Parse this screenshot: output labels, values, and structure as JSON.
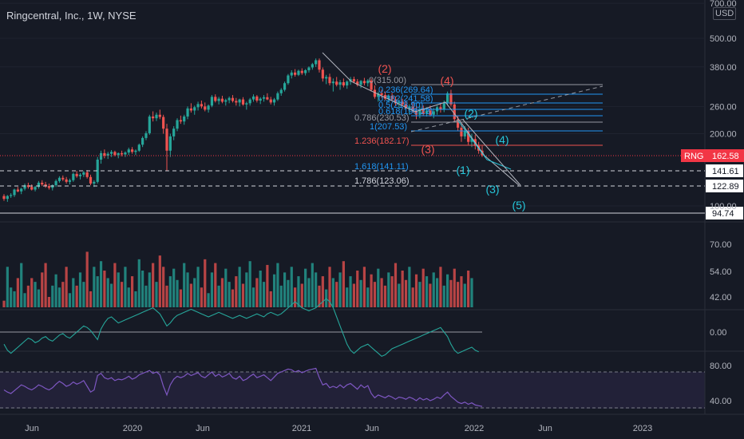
{
  "header": {
    "title": "Ringcentral, Inc., 1W, NYSE",
    "currency": "USD"
  },
  "colors": {
    "up": "#26a69a",
    "down": "#ef5350",
    "rsi": "#7e57c2",
    "osc_up": "#26a69a",
    "osc_down": "#c2185b",
    "fib_blue": "#2196f3",
    "wave_red": "#ef5350",
    "wave_teal": "#26c6da",
    "current_price": "#f23645"
  },
  "chart_data": {
    "type": "candlestick",
    "title": "Ringcentral, Inc., 1W, NYSE",
    "scale": "log",
    "price_axis_ticks": [
      "700.00",
      "500.00",
      "380.00",
      "260.00",
      "200.00",
      "100.00"
    ],
    "volume_axis_ticks": [
      "70.00",
      "54.00",
      "42.00"
    ],
    "oscillator_axis_ticks": [
      "0.00"
    ],
    "rsi_axis_ticks": [
      "80.00",
      "40.00"
    ],
    "time_ticks": [
      "Jun",
      "2020",
      "Jun",
      "2021",
      "Jun",
      "2022",
      "Jun",
      "2023"
    ],
    "current_price": {
      "symbol": "RNG",
      "value": "162.58"
    },
    "price_lines": [
      "141.61",
      "122.89",
      "94.74"
    ],
    "fib_levels": [
      {
        "label": "0(315.00)",
        "color": "#9598a1"
      },
      {
        "label": "0.236(269.64)",
        "color": "#2196f3"
      },
      {
        "label": "0.382(241.58)",
        "color": "#2196f3"
      },
      {
        "label": "0.5(218.90)",
        "color": "#2196f3"
      },
      {
        "label": "0.618(196.23)",
        "color": "#2196f3"
      },
      {
        "label": "0.786(230.53)",
        "color": "#9598a1"
      },
      {
        "label": "1(207.53)",
        "color": "#2196f3"
      },
      {
        "label": "1.236(182.17)",
        "color": "#ef5350"
      },
      {
        "label": "1.618(141.11)",
        "color": "#2196f3"
      },
      {
        "label": "1.786(123.06)",
        "color": "#d1d4dc"
      }
    ],
    "wave_labels": [
      {
        "label": "(2)",
        "color": "#ef5350"
      },
      {
        "label": "(4)",
        "color": "#ef5350"
      },
      {
        "label": "(3)",
        "color": "#ef5350"
      },
      {
        "label": "(2)",
        "color": "#26c6da"
      },
      {
        "label": "(4)",
        "color": "#26c6da"
      },
      {
        "label": "(1)",
        "color": "#26c6da"
      },
      {
        "label": "(3)",
        "color": "#26c6da"
      },
      {
        "label": "(5)",
        "color": "#26c6da"
      }
    ],
    "candles": [
      [
        110,
        112,
        105,
        107
      ],
      [
        107,
        111,
        104,
        110
      ],
      [
        110,
        113,
        108,
        111
      ],
      [
        111,
        118,
        109,
        117
      ],
      [
        117,
        120,
        114,
        115
      ],
      [
        115,
        119,
        112,
        118
      ],
      [
        118,
        124,
        116,
        122
      ],
      [
        122,
        125,
        118,
        120
      ],
      [
        120,
        123,
        116,
        117
      ],
      [
        117,
        121,
        115,
        120
      ],
      [
        120,
        127,
        118,
        125
      ],
      [
        125,
        128,
        121,
        123
      ],
      [
        123,
        126,
        119,
        121
      ],
      [
        121,
        124,
        117,
        119
      ],
      [
        119,
        123,
        116,
        122
      ],
      [
        122,
        129,
        120,
        127
      ],
      [
        127,
        133,
        125,
        131
      ],
      [
        131,
        134,
        127,
        129
      ],
      [
        129,
        132,
        124,
        126
      ],
      [
        126,
        130,
        123,
        128
      ],
      [
        128,
        138,
        126,
        136
      ],
      [
        136,
        140,
        131,
        133
      ],
      [
        133,
        137,
        129,
        135
      ],
      [
        135,
        140,
        132,
        138
      ],
      [
        138,
        141,
        130,
        132
      ],
      [
        132,
        135,
        122,
        124
      ],
      [
        124,
        128,
        120,
        126
      ],
      [
        126,
        160,
        124,
        156
      ],
      [
        156,
        170,
        150,
        166
      ],
      [
        166,
        172,
        158,
        162
      ],
      [
        162,
        168,
        157,
        165
      ],
      [
        165,
        171,
        160,
        168
      ],
      [
        168,
        170,
        161,
        163
      ],
      [
        163,
        167,
        158,
        166
      ],
      [
        166,
        170,
        161,
        164
      ],
      [
        164,
        169,
        160,
        167
      ],
      [
        167,
        175,
        163,
        172
      ],
      [
        172,
        176,
        165,
        168
      ],
      [
        168,
        172,
        163,
        170
      ],
      [
        170,
        182,
        168,
        180
      ],
      [
        180,
        195,
        176,
        192
      ],
      [
        192,
        205,
        188,
        201
      ],
      [
        201,
        240,
        198,
        236
      ],
      [
        236,
        248,
        225,
        232
      ],
      [
        232,
        245,
        226,
        240
      ],
      [
        240,
        252,
        230,
        235
      ],
      [
        235,
        240,
        200,
        210
      ],
      [
        210,
        220,
        140,
        170
      ],
      [
        170,
        200,
        160,
        195
      ],
      [
        195,
        215,
        188,
        210
      ],
      [
        210,
        232,
        205,
        228
      ],
      [
        228,
        238,
        220,
        225
      ],
      [
        225,
        240,
        218,
        236
      ],
      [
        236,
        260,
        230,
        255
      ],
      [
        255,
        268,
        245,
        250
      ],
      [
        250,
        262,
        240,
        258
      ],
      [
        258,
        272,
        250,
        266
      ],
      [
        266,
        275,
        255,
        260
      ],
      [
        260,
        270,
        248,
        252
      ],
      [
        252,
        265,
        245,
        262
      ],
      [
        262,
        290,
        258,
        285
      ],
      [
        285,
        292,
        270,
        274
      ],
      [
        274,
        285,
        265,
        280
      ],
      [
        280,
        288,
        268,
        272
      ],
      [
        272,
        280,
        262,
        276
      ],
      [
        276,
        286,
        268,
        282
      ],
      [
        282,
        290,
        270,
        274
      ],
      [
        274,
        282,
        262,
        270
      ],
      [
        270,
        280,
        260,
        278
      ],
      [
        278,
        284,
        262,
        265
      ],
      [
        265,
        272,
        252,
        268
      ],
      [
        268,
        282,
        262,
        278
      ],
      [
        278,
        292,
        272,
        286
      ],
      [
        286,
        290,
        270,
        275
      ],
      [
        275,
        284,
        266,
        280
      ],
      [
        280,
        290,
        272,
        284
      ],
      [
        284,
        295,
        276,
        278
      ],
      [
        278,
        285,
        265,
        270
      ],
      [
        270,
        282,
        262,
        278
      ],
      [
        278,
        300,
        274,
        295
      ],
      [
        295,
        310,
        288,
        305
      ],
      [
        305,
        330,
        300,
        325
      ],
      [
        325,
        355,
        320,
        350
      ],
      [
        350,
        368,
        340,
        360
      ],
      [
        360,
        372,
        346,
        352
      ],
      [
        352,
        370,
        348,
        366
      ],
      [
        366,
        375,
        352,
        358
      ],
      [
        358,
        372,
        350,
        368
      ],
      [
        368,
        382,
        360,
        378
      ],
      [
        378,
        395,
        370,
        390
      ],
      [
        390,
        412,
        380,
        405
      ],
      [
        405,
        412,
        360,
        370
      ],
      [
        370,
        378,
        330,
        340
      ],
      [
        340,
        352,
        322,
        345
      ],
      [
        345,
        356,
        318,
        325
      ],
      [
        325,
        340,
        300,
        330
      ],
      [
        330,
        345,
        315,
        320
      ],
      [
        320,
        335,
        305,
        328
      ],
      [
        328,
        340,
        312,
        318
      ],
      [
        318,
        334,
        308,
        330
      ],
      [
        330,
        345,
        320,
        338
      ],
      [
        338,
        346,
        325,
        330
      ],
      [
        330,
        338,
        315,
        320
      ],
      [
        320,
        335,
        310,
        332
      ],
      [
        332,
        342,
        318,
        325
      ],
      [
        325,
        338,
        315,
        333
      ],
      [
        333,
        340,
        300,
        305
      ],
      [
        305,
        318,
        280,
        285
      ],
      [
        285,
        300,
        272,
        295
      ],
      [
        295,
        305,
        282,
        290
      ],
      [
        290,
        300,
        276,
        280
      ],
      [
        280,
        292,
        272,
        288
      ],
      [
        288,
        296,
        275,
        278
      ],
      [
        278,
        286,
        262,
        268
      ],
      [
        268,
        278,
        255,
        272
      ],
      [
        272,
        280,
        260,
        265
      ],
      [
        265,
        275,
        250,
        255
      ],
      [
        255,
        265,
        240,
        260
      ],
      [
        260,
        272,
        245,
        250
      ],
      [
        250,
        262,
        230,
        240
      ],
      [
        240,
        260,
        232,
        252
      ],
      [
        252,
        262,
        238,
        242
      ],
      [
        242,
        258,
        236,
        250
      ],
      [
        250,
        262,
        236,
        240
      ],
      [
        240,
        256,
        232,
        248
      ],
      [
        248,
        262,
        240,
        258
      ],
      [
        258,
        268,
        245,
        252
      ],
      [
        252,
        275,
        246,
        270
      ],
      [
        270,
        300,
        262,
        295
      ],
      [
        295,
        305,
        260,
        265
      ],
      [
        265,
        272,
        225,
        230
      ],
      [
        230,
        238,
        205,
        212
      ],
      [
        212,
        220,
        185,
        195
      ],
      [
        195,
        215,
        190,
        205
      ],
      [
        205,
        212,
        180,
        185
      ],
      [
        185,
        200,
        176,
        190
      ],
      [
        190,
        198,
        172,
        178
      ],
      [
        178,
        185,
        165,
        170
      ],
      [
        170,
        178,
        160,
        162.58
      ]
    ],
    "volume_series": [
      {
        "name": "volume",
        "values": [
          40,
          58,
          47,
          45,
          52,
          60,
          44,
          48,
          52,
          50,
          46,
          55,
          60,
          42,
          48,
          54,
          47,
          50,
          58,
          44,
          52,
          48,
          55,
          50,
          66,
          45,
          58,
          53,
          61,
          56,
          52,
          49,
          60,
          55,
          50,
          58,
          47,
          53,
          45,
          62,
          56,
          48,
          55,
          60,
          50,
          64,
          58,
          48,
          53,
          57,
          51,
          46,
          60,
          55,
          49,
          52,
          58,
          47,
          62,
          44,
          55,
          60,
          48,
          52,
          57,
          50,
          46,
          53,
          58,
          49,
          55,
          61,
          47,
          52,
          56,
          50,
          59,
          45,
          54,
          60,
          48,
          55,
          51,
          58,
          47,
          53,
          49,
          57,
          52,
          60,
          55,
          48,
          53,
          46,
          58,
          52,
          50,
          55,
          61,
          47,
          53,
          49,
          56,
          51,
          58,
          47,
          54,
          50,
          57,
          52,
          48,
          55,
          53,
          60,
          49,
          56,
          51,
          58,
          47,
          54,
          50,
          57,
          53,
          49,
          55,
          52,
          58,
          48,
          54,
          51,
          57,
          50,
          53,
          49,
          56,
          52
        ]
      }
    ],
    "oscillator_series": [
      {
        "name": "oscillator",
        "values": [
          -8,
          -12,
          -14,
          -12,
          -10,
          -8,
          -6,
          -4,
          -5,
          -7,
          -6,
          -4,
          -3,
          -5,
          -6,
          -4,
          -2,
          -1,
          -3,
          -4,
          -2,
          0,
          2,
          4,
          3,
          1,
          -2,
          -5,
          2,
          6,
          9,
          10,
          8,
          6,
          7,
          8,
          9,
          10,
          11,
          12,
          13,
          14,
          15,
          16,
          14,
          12,
          8,
          4,
          6,
          9,
          11,
          12,
          13,
          14,
          15,
          14,
          13,
          12,
          11,
          10,
          11,
          12,
          13,
          12,
          11,
          10,
          9,
          10,
          11,
          10,
          9,
          10,
          11,
          12,
          11,
          10,
          12,
          13,
          12,
          11,
          12,
          14,
          16,
          18,
          20,
          18,
          16,
          15,
          14,
          15,
          16,
          18,
          20,
          22,
          20,
          16,
          10,
          4,
          -2,
          -8,
          -12,
          -14,
          -12,
          -10,
          -9,
          -8,
          -10,
          -12,
          -14,
          -16,
          -15,
          -13,
          -11,
          -10,
          -9,
          -8,
          -7,
          -6,
          -5,
          -4,
          -3,
          -2,
          -1,
          0,
          1,
          2,
          3,
          0,
          -3,
          -8,
          -12,
          -14,
          -13,
          -12,
          -11,
          -10,
          -12,
          -13
        ]
      }
    ],
    "rsi_series": [
      {
        "name": "rsi",
        "values": [
          55,
          52,
          50,
          54,
          58,
          62,
          60,
          57,
          55,
          58,
          62,
          60,
          57,
          55,
          58,
          63,
          67,
          64,
          60,
          62,
          66,
          63,
          65,
          68,
          60,
          52,
          55,
          75,
          78,
          72,
          70,
          72,
          68,
          70,
          69,
          71,
          74,
          70,
          72,
          76,
          78,
          80,
          82,
          78,
          80,
          76,
          60,
          48,
          62,
          70,
          74,
          72,
          74,
          78,
          75,
          77,
          79,
          74,
          72,
          76,
          80,
          74,
          77,
          73,
          75,
          78,
          72,
          70,
          74,
          68,
          70,
          74,
          77,
          72,
          74,
          76,
          72,
          68,
          73,
          78,
          80,
          82,
          84,
          83,
          80,
          82,
          79,
          81,
          83,
          84,
          85,
          72,
          62,
          64,
          58,
          60,
          58,
          62,
          58,
          62,
          64,
          60,
          56,
          62,
          58,
          61,
          50,
          44,
          48,
          46,
          44,
          47,
          45,
          42,
          45,
          44,
          42,
          45,
          43,
          40,
          44,
          41,
          43,
          40,
          42,
          45,
          43,
          48,
          52,
          46,
          42,
          38,
          36,
          38,
          35,
          37,
          34,
          33,
          32,
          31
        ]
      }
    ]
  }
}
